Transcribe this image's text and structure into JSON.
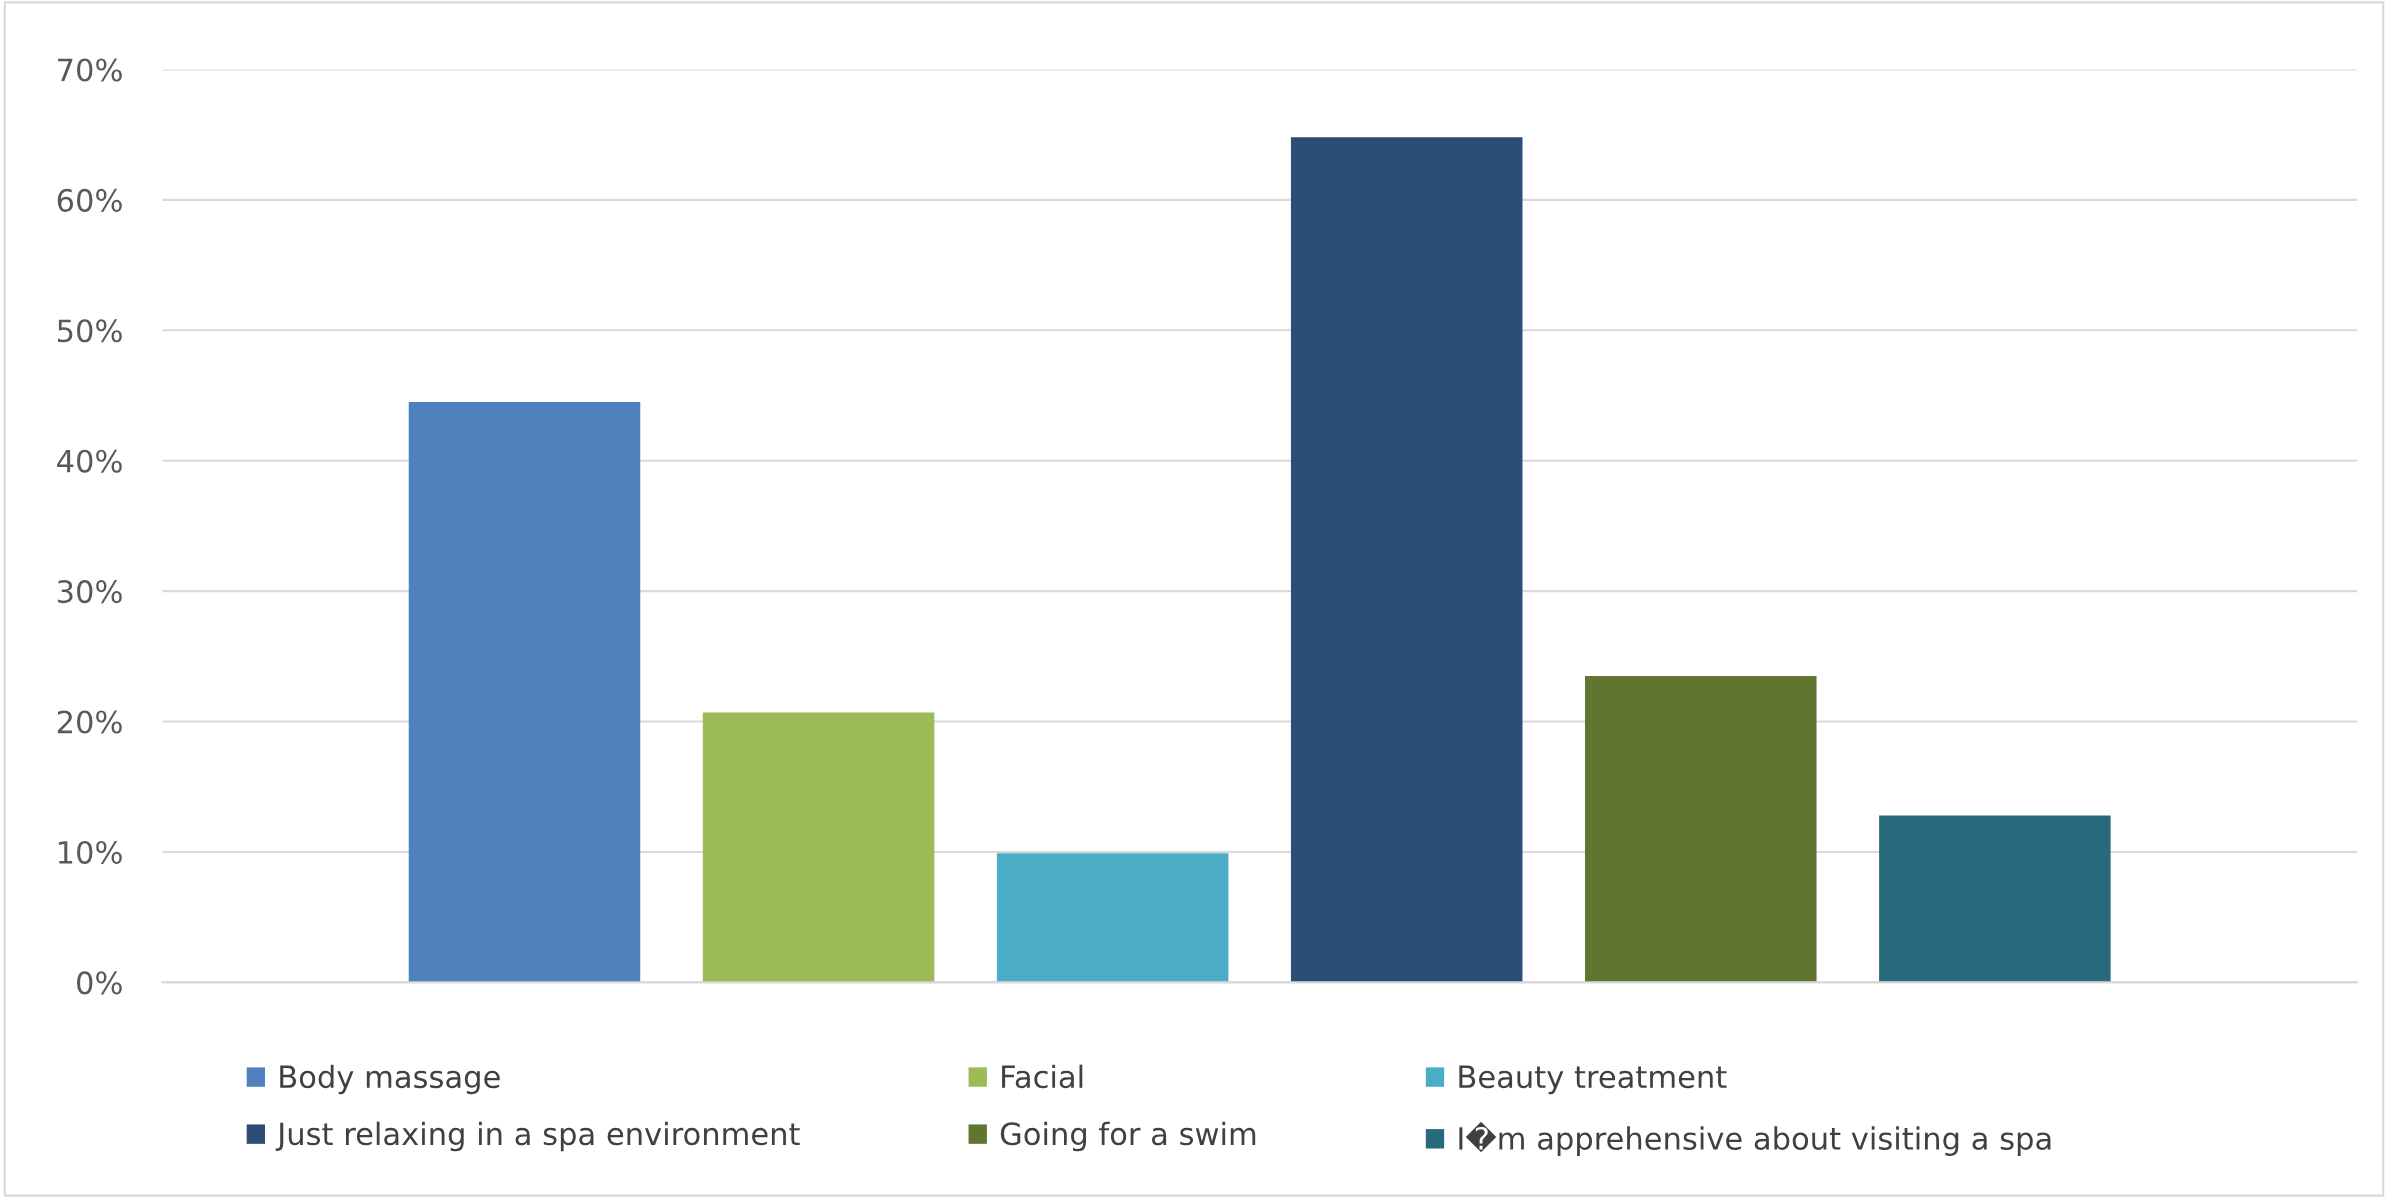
{
  "chart_data": {
    "type": "bar",
    "categories": [
      null
    ],
    "series": [
      {
        "name": "Body massage",
        "color": "#4f81bd",
        "values": [
          44.5
        ]
      },
      {
        "name": "Facial",
        "color": "#9bbb59",
        "values": [
          20.7
        ]
      },
      {
        "name": "Beauty treatment",
        "color": "#4bacc6",
        "values": [
          9.9
        ]
      },
      {
        "name": "Just relaxing in a spa environment",
        "color": "#2c4d75",
        "values": [
          64.8
        ]
      },
      {
        "name": "Going for a swim",
        "color": "#5f7530",
        "values": [
          23.5
        ]
      },
      {
        "name": "I�m apprehensive about visiting a spa",
        "color": "#276a7c",
        "values": [
          12.8
        ]
      }
    ],
    "ylim": [
      0,
      70
    ],
    "yticks": [
      {
        "value": 0,
        "label": "0%"
      },
      {
        "value": 10,
        "label": "10%"
      },
      {
        "value": 20,
        "label": "20%"
      },
      {
        "value": 30,
        "label": "30%"
      },
      {
        "value": 40,
        "label": "40%"
      },
      {
        "value": 50,
        "label": "50%"
      },
      {
        "value": 60,
        "label": "60%"
      },
      {
        "value": 70,
        "label": "70%"
      }
    ],
    "grid": "y",
    "legend": "bottom"
  }
}
